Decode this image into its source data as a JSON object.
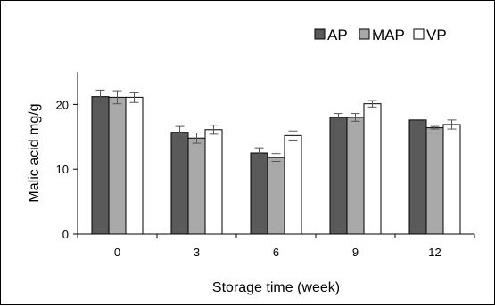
{
  "colors": {
    "AP": "#5a5a5a",
    "MAP": "#a9a9a9",
    "VP": "#ffffff",
    "stroke": "#000000",
    "error_bar": "#555555"
  },
  "chart_data": {
    "type": "bar",
    "title": "",
    "xlabel": "Storage time (week)",
    "ylabel": "Malic acid mg/g",
    "categories": [
      "0",
      "3",
      "6",
      "9",
      "12"
    ],
    "ylim": [
      0,
      25
    ],
    "yticks": [
      0,
      10,
      20
    ],
    "grid": false,
    "legend_position": "top-right",
    "series": [
      {
        "name": "AP",
        "values": [
          21.2,
          15.7,
          12.5,
          18.0,
          17.6
        ],
        "errors": [
          1.0,
          0.9,
          0.8,
          0.6,
          0.0
        ]
      },
      {
        "name": "MAP",
        "values": [
          21.1,
          14.8,
          11.8,
          18.0,
          16.4
        ],
        "errors": [
          1.0,
          0.8,
          0.6,
          0.6,
          0.2
        ]
      },
      {
        "name": "VP",
        "values": [
          21.1,
          16.1,
          15.2,
          20.1,
          16.9
        ],
        "errors": [
          0.8,
          0.7,
          0.7,
          0.5,
          0.7
        ]
      }
    ]
  }
}
